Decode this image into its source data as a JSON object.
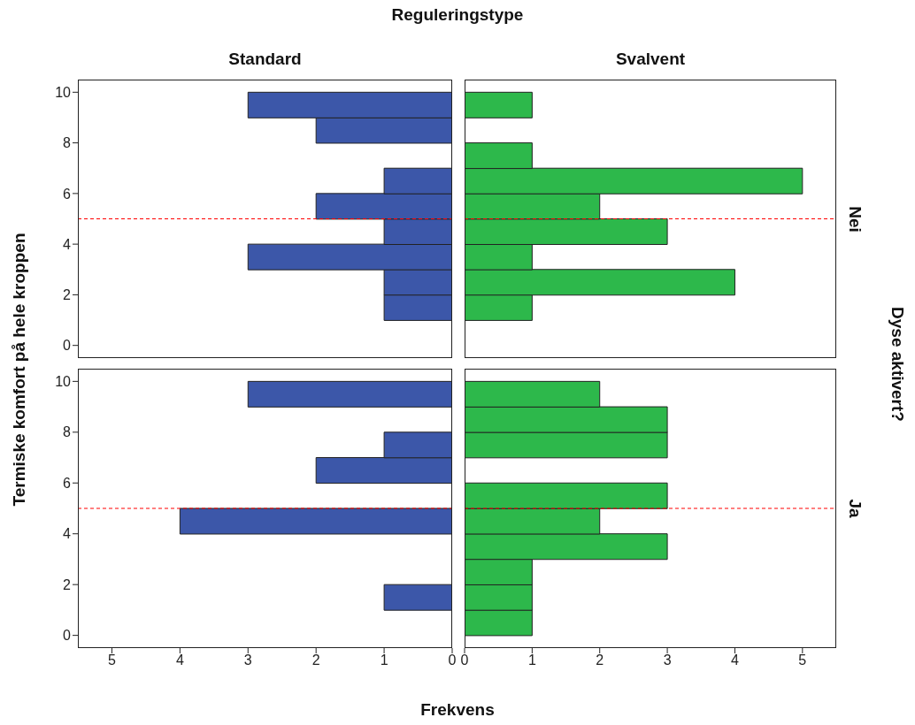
{
  "chart_data": [
    {
      "type": "histogram",
      "orientation": "horizontal",
      "title": "Reguleringstype",
      "subtitle": "Standard",
      "bins": [
        0,
        1,
        2,
        3,
        4,
        5,
        6,
        7,
        8,
        9,
        10
      ],
      "values": [
        0,
        1,
        1,
        3,
        1,
        2,
        1,
        0,
        2,
        3
      ],
      "color": "#3c57a9",
      "xlim": [
        5.5,
        0
      ],
      "xticks": [
        5,
        4,
        3,
        2,
        1,
        0
      ],
      "ylim": [
        -0.5,
        10.5
      ],
      "yticks": [
        0,
        2,
        4,
        6,
        8,
        10
      ],
      "tick_labels": "y",
      "ref_lines": [
        {
          "axis": "y",
          "value": 5,
          "color": "#ff0000",
          "line_style": "dashed"
        }
      ]
    },
    {
      "type": "histogram",
      "orientation": "horizontal",
      "subtitle": "Svalvent",
      "y2label": "Nei",
      "annotations": [
        "Dyse aktivert?"
      ],
      "bins": [
        0,
        1,
        2,
        3,
        4,
        5,
        6,
        7,
        8,
        9,
        10
      ],
      "values": [
        0,
        1,
        4,
        1,
        3,
        2,
        5,
        1,
        0,
        1
      ],
      "color": "#2db84b",
      "xlim": [
        0,
        5.5
      ],
      "xticks": [
        0,
        1,
        2,
        3,
        4,
        5
      ],
      "ylim": [
        -0.5,
        10.5
      ],
      "yticks": [
        0,
        2,
        4,
        6,
        8,
        10
      ],
      "tick_labels": false,
      "ref_lines": [
        {
          "axis": "y",
          "value": 5,
          "color": "#ff0000",
          "line_style": "dashed"
        }
      ]
    },
    {
      "type": "histogram",
      "orientation": "horizontal",
      "xlabel": "Frekvens",
      "ylabel": "Termiske komfort på hele kroppen",
      "bins": [
        0,
        1,
        2,
        3,
        4,
        5,
        6,
        7,
        8,
        9,
        10
      ],
      "values": [
        0,
        1,
        0,
        0,
        4,
        0,
        2,
        1,
        0,
        3
      ],
      "color": "#3c57a9",
      "xlim": [
        5.5,
        0
      ],
      "xticks": [
        5,
        4,
        3,
        2,
        1,
        0
      ],
      "ylim": [
        -0.5,
        10.5
      ],
      "yticks": [
        0,
        2,
        4,
        6,
        8,
        10
      ],
      "ref_lines": [
        {
          "axis": "y",
          "value": 5,
          "color": "#ff0000",
          "line_style": "dashed"
        }
      ]
    },
    {
      "type": "histogram",
      "orientation": "horizontal",
      "y2label": "Ja",
      "bins": [
        0,
        1,
        2,
        3,
        4,
        5,
        6,
        7,
        8,
        9,
        10
      ],
      "values": [
        1,
        1,
        1,
        3,
        2,
        3,
        0,
        3,
        3,
        2
      ],
      "color": "#2db84b",
      "xlim": [
        0,
        5.5
      ],
      "xticks": [
        0,
        1,
        2,
        3,
        4,
        5
      ],
      "ylim": [
        -0.5,
        10.5
      ],
      "yticks": [
        0,
        2,
        4,
        6,
        8,
        10
      ],
      "tick_labels": "x",
      "ref_lines": [
        {
          "axis": "y",
          "value": 5,
          "color": "#ff0000",
          "line_style": "dashed"
        }
      ]
    }
  ]
}
